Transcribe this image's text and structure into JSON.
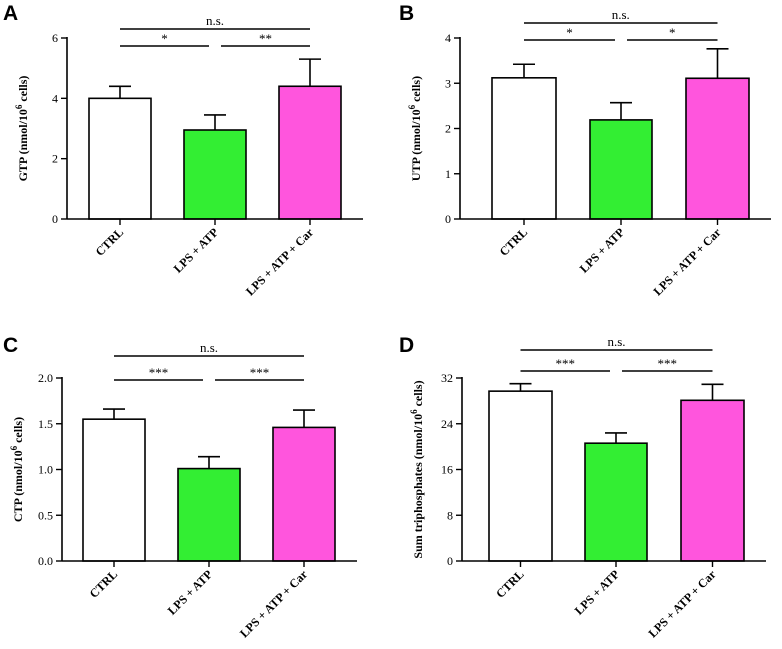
{
  "colors": {
    "CTRL": "#ffffff",
    "LPS + ATP": "#33ee33",
    "LPS + ATP + Car": "#ff55dd"
  },
  "chart_data": [
    {
      "panel": "A",
      "type": "bar",
      "categories": [
        "CTRL",
        "LPS + ATP",
        "LPS + ATP + Car"
      ],
      "values": [
        4.0,
        2.95,
        4.4
      ],
      "errors": [
        0.4,
        0.5,
        0.9
      ],
      "ylabel": {
        "main": "GTP (nmol/10",
        "sup": "6",
        "tail": " cells)"
      },
      "ylim": [
        0,
        6
      ],
      "ticks": [
        0,
        2,
        4,
        6
      ],
      "tick_labels": [
        "0",
        "2",
        "4",
        "6"
      ],
      "significance": [
        {
          "pair": [
            0,
            2
          ],
          "label": "n.s."
        },
        {
          "pair": [
            0,
            1
          ],
          "label": "*"
        },
        {
          "pair": [
            1,
            2
          ],
          "label": "**"
        }
      ]
    },
    {
      "panel": "B",
      "type": "bar",
      "categories": [
        "CTRL",
        "LPS + ATP",
        "LPS + ATP + Car"
      ],
      "values": [
        3.12,
        2.19,
        3.11
      ],
      "errors": [
        0.3,
        0.38,
        0.65
      ],
      "ylabel": {
        "main": "UTP (nmol/10",
        "sup": "6",
        "tail": " cells)"
      },
      "ylim": [
        0,
        4
      ],
      "ticks": [
        0,
        1,
        2,
        3,
        4
      ],
      "tick_labels": [
        "0",
        "1",
        "2",
        "3",
        "4"
      ],
      "significance": [
        {
          "pair": [
            0,
            2
          ],
          "label": "n.s."
        },
        {
          "pair": [
            0,
            1
          ],
          "label": "*"
        },
        {
          "pair": [
            1,
            2
          ],
          "label": "*"
        }
      ]
    },
    {
      "panel": "C",
      "type": "bar",
      "categories": [
        "CTRL",
        "LPS + ATP",
        "LPS + ATP + Car"
      ],
      "values": [
        1.55,
        1.01,
        1.46
      ],
      "errors": [
        0.11,
        0.13,
        0.19
      ],
      "ylabel": {
        "main": "CTP (nmol/10",
        "sup": "6",
        "tail": " cells)"
      },
      "ylim": [
        0,
        2.0
      ],
      "ticks": [
        0,
        0.5,
        1.0,
        1.5,
        2.0
      ],
      "tick_labels": [
        "0.0",
        "0.5",
        "1.0",
        "1.5",
        "2.0"
      ],
      "significance": [
        {
          "pair": [
            0,
            2
          ],
          "label": "n.s."
        },
        {
          "pair": [
            0,
            1
          ],
          "label": "***"
        },
        {
          "pair": [
            1,
            2
          ],
          "label": "***"
        }
      ]
    },
    {
      "panel": "D",
      "type": "bar",
      "categories": [
        "CTRL",
        "LPS + ATP",
        "LPS + ATP + Car"
      ],
      "values": [
        29.7,
        20.6,
        28.1
      ],
      "errors": [
        1.3,
        1.8,
        2.8
      ],
      "ylabel": {
        "main": "Sum triphosphates (nmol/10",
        "sup": "6",
        "tail": " cells)"
      },
      "ylim": [
        0,
        32
      ],
      "ticks": [
        0,
        8,
        16,
        24,
        32
      ],
      "tick_labels": [
        "0",
        "8",
        "16",
        "24",
        "32"
      ],
      "significance": [
        {
          "pair": [
            0,
            2
          ],
          "label": "n.s."
        },
        {
          "pair": [
            0,
            1
          ],
          "label": "***"
        },
        {
          "pair": [
            1,
            2
          ],
          "label": "***"
        }
      ]
    }
  ]
}
